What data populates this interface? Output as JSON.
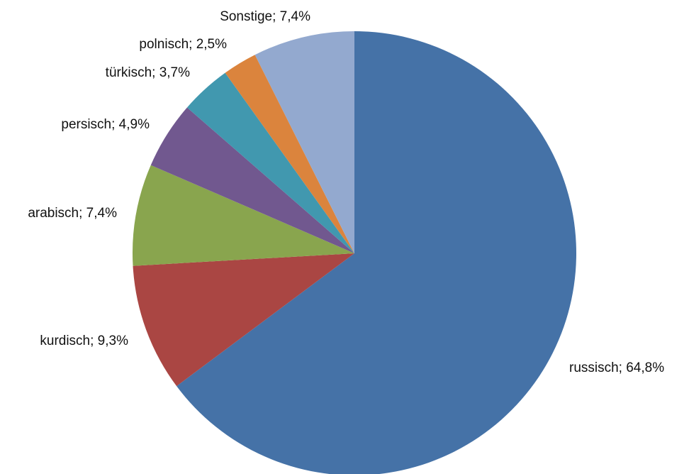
{
  "chart_data": {
    "type": "pie",
    "title": "",
    "start": "12 o'clock",
    "direction": "clockwise",
    "slices": [
      {
        "label": "russisch",
        "value": 64.8,
        "display": "russisch; 64,8%",
        "color": "#4572A7"
      },
      {
        "label": "kurdisch",
        "value": 9.3,
        "display": "kurdisch; 9,3%",
        "color": "#AA4643"
      },
      {
        "label": "arabisch",
        "value": 7.4,
        "display": "arabisch; 7,4%",
        "color": "#89A54E"
      },
      {
        "label": "persisch",
        "value": 4.9,
        "display": "persisch; 4,9%",
        "color": "#71588F"
      },
      {
        "label": "türkisch",
        "value": 3.7,
        "display": "türkisch; 3,7%",
        "color": "#4198AF"
      },
      {
        "label": "polnisch",
        "value": 2.5,
        "display": "polnisch; 2,5%",
        "color": "#DB843D"
      },
      {
        "label": "Sonstige",
        "value": 7.4,
        "display": "Sonstige; 7,4%",
        "color": "#93A9CF"
      }
    ]
  }
}
